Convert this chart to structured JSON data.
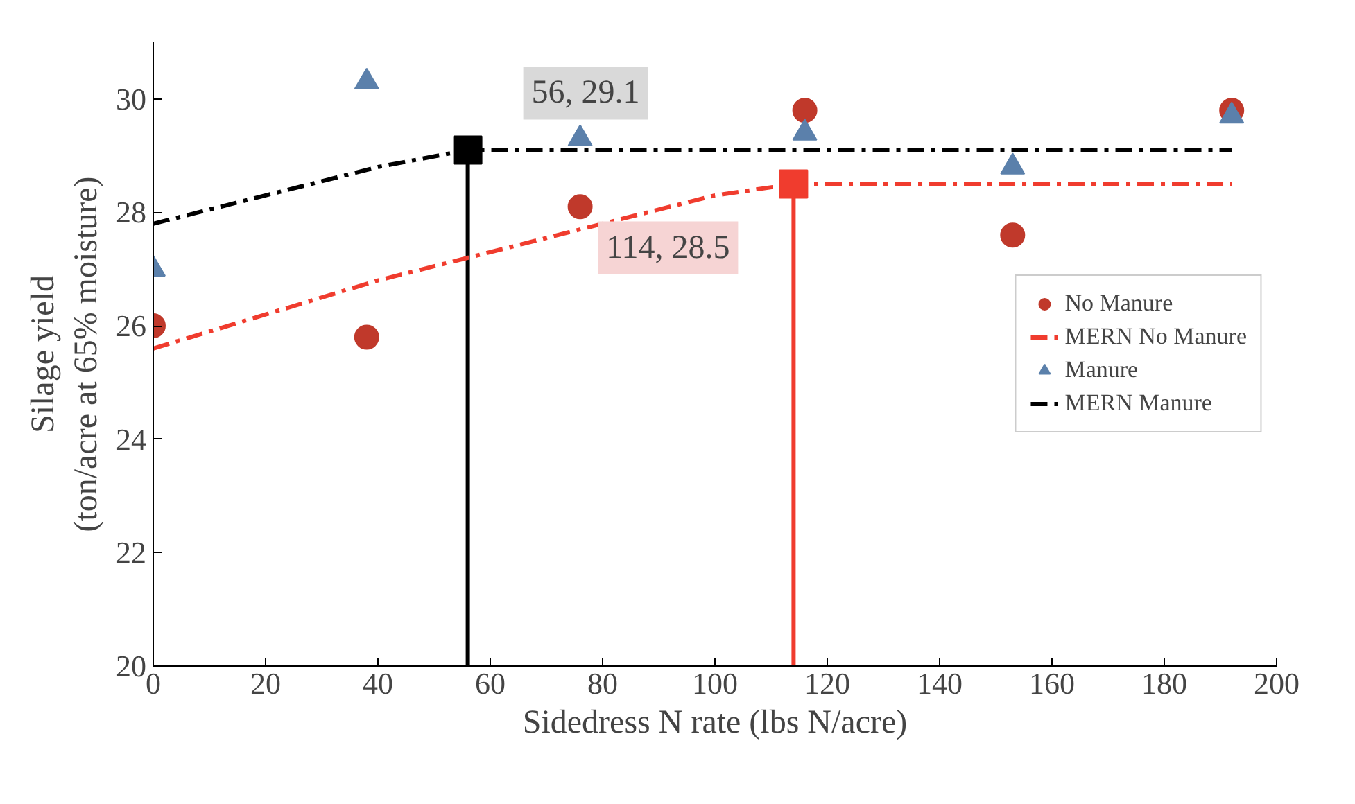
{
  "chart_data": {
    "type": "scatter",
    "xlabel": "Sidedress N rate (lbs N/acre)",
    "ylabel": "Silage yield\n(ton/acre at 65% moisture)",
    "xlim": [
      0,
      200
    ],
    "xticks": [
      0,
      20,
      40,
      60,
      80,
      100,
      120,
      140,
      160,
      180,
      200
    ],
    "ylim": [
      20,
      31
    ],
    "yticks": [
      20,
      22,
      24,
      26,
      28,
      30
    ],
    "grid": false,
    "legend": "right",
    "series": [
      {
        "type": "line",
        "color": "#000000",
        "line_style": "solid",
        "x": [
          56,
          56
        ],
        "values": [
          20,
          29.1
        ]
      },
      {
        "type": "line",
        "color": "#f03c2e",
        "line_style": "solid",
        "x": [
          114,
          114
        ],
        "values": [
          20,
          28.5
        ]
      },
      {
        "name": "No Manure",
        "color": "#c0392b",
        "marker": "circle",
        "x": [
          0,
          38,
          76,
          116,
          153,
          192
        ],
        "values": [
          26.0,
          25.8,
          28.1,
          29.8,
          27.6,
          29.8
        ]
      },
      {
        "type": "line",
        "name": "MERN No Manure",
        "color": "#f03c2e",
        "line_style": "dashdot",
        "x": [
          0,
          20,
          40,
          60,
          80,
          100,
          114,
          192
        ],
        "values": [
          25.6,
          26.2,
          26.8,
          27.3,
          27.8,
          28.3,
          28.5,
          28.5
        ]
      },
      {
        "name": "Manure",
        "color": "#5b80ab",
        "marker": "triangle",
        "x": [
          0,
          38,
          76,
          116,
          153,
          192
        ],
        "values": [
          27.0,
          30.3,
          29.3,
          29.4,
          28.8,
          29.7
        ]
      },
      {
        "type": "line",
        "name": "MERN Manure",
        "color": "#000000",
        "line_style": "dashdot",
        "x": [
          0,
          20,
          40,
          56,
          192
        ],
        "values": [
          27.8,
          28.3,
          28.8,
          29.1,
          29.1
        ]
      },
      {
        "color": "#000000",
        "marker": "square",
        "x": [
          56
        ],
        "values": [
          29.1
        ]
      },
      {
        "color": "#f03c2e",
        "marker": "square",
        "x": [
          114
        ],
        "values": [
          28.5
        ]
      }
    ],
    "annotations": [
      {
        "text": "56, 29.1",
        "x": 56,
        "y": 29.1
      },
      {
        "text": "114, 28.5",
        "x": 114,
        "y": 28.5
      }
    ]
  }
}
